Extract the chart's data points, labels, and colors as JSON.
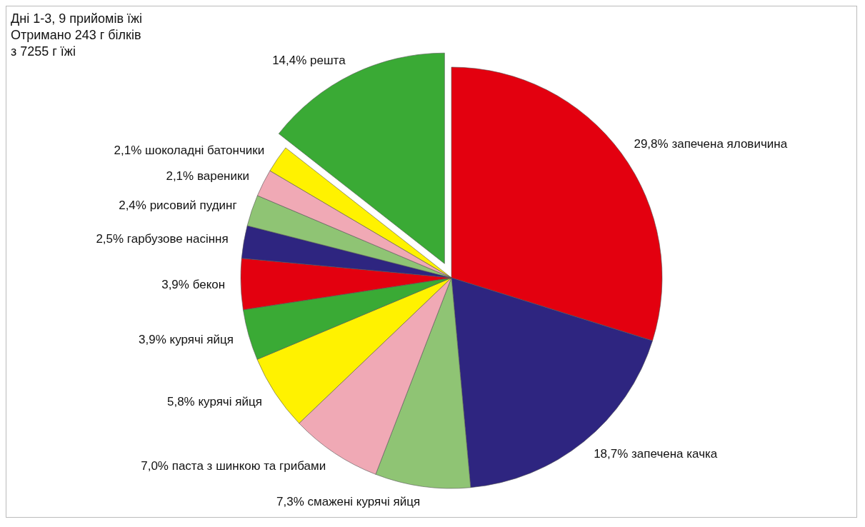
{
  "chart_data": {
    "type": "pie",
    "title": "Дні 1-3, 9 прийомів їжі",
    "subtitle": "Отримано 243 г білків\nз 7255 г їжі",
    "categories": [
      "запечена  яловичина",
      "запечена качка",
      "смажені курячі яйця",
      "паста з шинкою та грибами",
      "курячі яйця",
      "курячі яйця",
      "бекон",
      "гарбузове насіння",
      "рисовий пудинг",
      "вареники",
      "шоколадні батончики",
      "решта"
    ],
    "values": [
      29.8,
      18.7,
      7.3,
      7.0,
      5.8,
      3.9,
      3.9,
      2.5,
      2.4,
      2.1,
      2.1,
      14.4
    ],
    "value_labels": [
      "29,8%",
      "18,7%",
      "7,3%",
      "7,0%",
      "5,8%",
      "3,9%",
      "3,9%",
      "2,5%",
      "2,4%",
      "2,1%",
      "2,1%",
      "14,4%"
    ],
    "colors": [
      "#e3000f",
      "#2e2580",
      "#8fc474",
      "#f0a9b5",
      "#fff200",
      "#3aaa35",
      "#e3000f",
      "#2e2580",
      "#8fc474",
      "#f0a9b5",
      "#fff200",
      "#3aaa35"
    ],
    "legend": false
  }
}
